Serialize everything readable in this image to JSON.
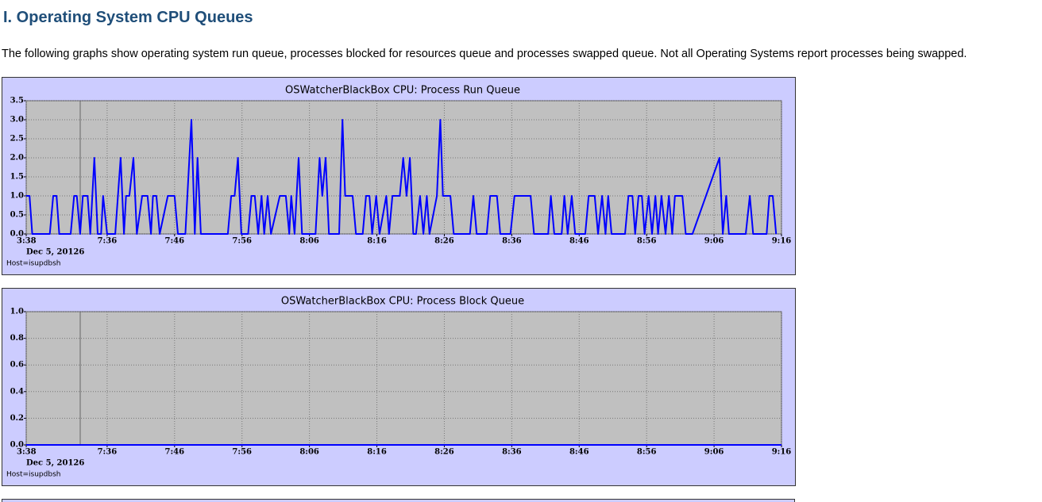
{
  "header": {
    "title": "I.  Operating System CPU Queues",
    "description": "The following graphs show operating system run queue, processes blocked for resources queue and processes swapped queue. Not all Operating Systems report processes being swapped."
  },
  "chart_data": [
    {
      "type": "line",
      "title": "OSWatcherBlackBox  CPU: Process Run Queue",
      "date_label": "Dec 5, 20126",
      "host_label": "Host=isupdbsh",
      "color": "#0000ff",
      "grid": true,
      "xlim": [
        444,
        556
      ],
      "xticks": [
        {
          "value": 444,
          "label": "3:38"
        },
        {
          "value": 456,
          "label": "7:36"
        },
        {
          "value": 466,
          "label": "7:46"
        },
        {
          "value": 476,
          "label": "7:56"
        },
        {
          "value": 486,
          "label": "8:06"
        },
        {
          "value": 496,
          "label": "8:16"
        },
        {
          "value": 506,
          "label": "8:26"
        },
        {
          "value": 516,
          "label": "8:36"
        },
        {
          "value": 526,
          "label": "8:46"
        },
        {
          "value": 536,
          "label": "8:56"
        },
        {
          "value": 546,
          "label": "9:06"
        },
        {
          "value": 556,
          "label": "9:16"
        }
      ],
      "ylim": [
        0,
        3.5
      ],
      "yticks": [
        {
          "value": 0,
          "label": "0.0"
        },
        0.5,
        {
          "value": 1,
          "label": "1.0"
        },
        1.5,
        {
          "value": 2,
          "label": "2.0"
        },
        2.5,
        {
          "value": 3,
          "label": "3.0"
        },
        3.5
      ],
      "x": [
        444.0,
        444.5,
        444.9,
        447.5,
        448.0,
        448.5,
        448.9,
        450.6,
        451.1,
        451.5,
        452.0,
        452.4,
        453.1,
        453.5,
        454.1,
        454.6,
        455.1,
        455.4,
        456.0,
        457.2,
        458.0,
        458.5,
        458.8,
        459.3,
        459.9,
        460.4,
        461.2,
        462.0,
        462.5,
        462.8,
        463.3,
        463.8,
        465.0,
        466.0,
        466.5,
        467.6,
        468.5,
        469.0,
        469.4,
        469.9,
        473.9,
        474.4,
        474.9,
        475.4,
        475.9,
        476.9,
        477.4,
        477.9,
        478.4,
        478.9,
        479.3,
        479.8,
        480.3,
        481.6,
        482.5,
        483.0,
        483.3,
        483.8,
        484.4,
        484.9,
        486.9,
        487.5,
        487.9,
        488.4,
        488.9,
        490.4,
        490.9,
        491.3,
        492.4,
        492.9,
        493.9,
        494.4,
        494.9,
        495.3,
        495.9,
        496.4,
        497.4,
        497.8,
        498.3,
        499.4,
        499.9,
        500.4,
        500.9,
        501.4,
        501.8,
        502.4,
        502.9,
        503.4,
        503.8,
        504.9,
        505.4,
        505.8,
        506.9,
        507.4,
        509.8,
        510.3,
        510.8,
        512.3,
        512.8,
        513.8,
        514.3,
        515.8,
        516.4,
        518.8,
        519.3,
        521.4,
        521.8,
        522.3,
        523.4,
        523.8,
        524.3,
        524.9,
        525.4,
        526.9,
        527.4,
        528.3,
        528.8,
        529.4,
        529.9,
        530.3,
        530.8,
        532.8,
        533.3,
        533.9,
        534.3,
        534.8,
        535.3,
        535.7,
        536.3,
        536.8,
        537.3,
        537.7,
        538.2,
        538.8,
        539.3,
        539.8,
        540.2,
        541.3,
        541.8,
        542.8,
        546.8,
        547.3,
        547.8,
        548.2,
        550.7,
        551.3,
        551.8,
        553.8,
        554.2,
        554.7,
        555.2
      ],
      "values": [
        1,
        1,
        0,
        0,
        1,
        1,
        0,
        0,
        1,
        1,
        0,
        1,
        1,
        0,
        2,
        0,
        0,
        1,
        0,
        0,
        2,
        0,
        1,
        1,
        2,
        0,
        1,
        1,
        0,
        1,
        1,
        0,
        1,
        1,
        0,
        0,
        3,
        0,
        2,
        0,
        0,
        1,
        1,
        2,
        0,
        0,
        1,
        1,
        0,
        1,
        0,
        1,
        0,
        1,
        1,
        0,
        1,
        0,
        2,
        0,
        0,
        2,
        1,
        2,
        0,
        0,
        3,
        1,
        1,
        0,
        0,
        1,
        1,
        0,
        1,
        0,
        1,
        0,
        1,
        1,
        2,
        1,
        2,
        0,
        0,
        1,
        0,
        1,
        0,
        1,
        3,
        1,
        1,
        0,
        0,
        1,
        0,
        0,
        1,
        1,
        0,
        0,
        1,
        1,
        0,
        0,
        1,
        0,
        0,
        1,
        0,
        1,
        0,
        0,
        1,
        1,
        0,
        1,
        0,
        1,
        0,
        0,
        1,
        1,
        0,
        1,
        1,
        0,
        1,
        0,
        1,
        0,
        1,
        0,
        1,
        0,
        1,
        1,
        0,
        0,
        2,
        0,
        1,
        0,
        0,
        1,
        0,
        0,
        1,
        1,
        0
      ]
    },
    {
      "type": "line",
      "title": "OSWatcherBlackBox  CPU: Process Block Queue",
      "date_label": "Dec 5, 20126",
      "host_label": "Host=isupdbsh",
      "color": "#0000ff",
      "grid": true,
      "xlim": [
        444,
        556
      ],
      "xticks": [
        {
          "value": 444,
          "label": "3:38"
        },
        {
          "value": 456,
          "label": "7:36"
        },
        {
          "value": 466,
          "label": "7:46"
        },
        {
          "value": 476,
          "label": "7:56"
        },
        {
          "value": 486,
          "label": "8:06"
        },
        {
          "value": 496,
          "label": "8:16"
        },
        {
          "value": 506,
          "label": "8:26"
        },
        {
          "value": 516,
          "label": "8:36"
        },
        {
          "value": 526,
          "label": "8:46"
        },
        {
          "value": 536,
          "label": "8:56"
        },
        {
          "value": 546,
          "label": "9:06"
        },
        {
          "value": 556,
          "label": "9:16"
        }
      ],
      "ylim": [
        0,
        1
      ],
      "yticks": [
        {
          "value": 0,
          "label": "0.0"
        },
        0.2,
        0.4,
        0.6,
        0.8,
        {
          "value": 1,
          "label": "1.0"
        }
      ],
      "x": [
        444,
        556
      ],
      "values": [
        0,
        0
      ]
    }
  ]
}
